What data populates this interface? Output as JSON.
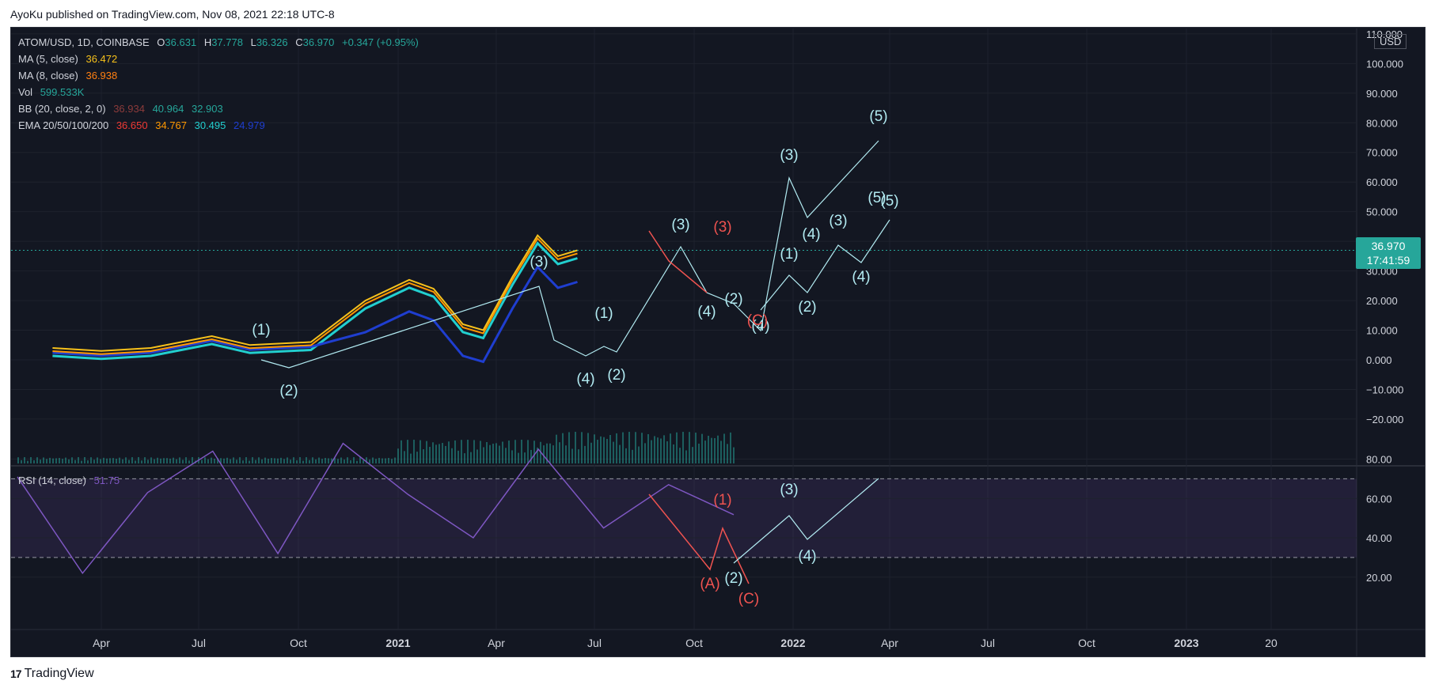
{
  "header": {
    "published": "AyoKu published on TradingView.com, Nov 08, 2021 22:18 UTC-8"
  },
  "footer": {
    "brand": "TradingView",
    "logo": "tradingview-logo"
  },
  "legend": {
    "symbol": "ATOM/USD, 1D, COINBASE",
    "ohlc": [
      {
        "k": "O",
        "v": "36.631"
      },
      {
        "k": "H",
        "v": "37.778"
      },
      {
        "k": "L",
        "v": "36.326"
      },
      {
        "k": "C",
        "v": "36.970"
      }
    ],
    "change": "+0.347 (+0.95%)",
    "ma5_label": "MA (5, close)",
    "ma5_value": "36.472",
    "ma8_label": "MA (8, close)",
    "ma8_value": "36.938",
    "vol_label": "Vol",
    "vol_value": "599.533K",
    "bb_label": "BB (20, close, 2, 0)",
    "bb_values": [
      "36.934",
      "40.964",
      "32.903"
    ],
    "ema_label": "EMA 20/50/100/200",
    "ema_values": [
      "36.650",
      "34.767",
      "30.495",
      "24.979"
    ],
    "rsi_label": "RSI (14, close)",
    "rsi_value": "51.75"
  },
  "price_axis": {
    "currency": "USD",
    "ticks": [
      "110.000",
      "100.000",
      "90.000",
      "80.000",
      "70.000",
      "60.000",
      "50.000",
      "40.000",
      "30.000",
      "20.000",
      "10.000",
      "0.000",
      "−10.000",
      "−20.000"
    ],
    "last_price": "36.970",
    "countdown": "17:41:59"
  },
  "rsi_axis": {
    "ticks": [
      "80.00",
      "60.00",
      "40.00",
      "20.00"
    ]
  },
  "time_axis": {
    "ticks": [
      "Apr",
      "Jul",
      "Oct",
      "2021",
      "Apr",
      "Jul",
      "Oct",
      "2022",
      "Apr",
      "Jul",
      "Oct",
      "2023",
      "20"
    ],
    "bold": [
      "2021",
      "2022",
      "2023"
    ]
  },
  "colors": {
    "background": "#131722",
    "grid": "#1e222d",
    "text": "#d1d4dc",
    "price": "#26a69a",
    "ma5": "#f7c11b",
    "ma8": "#ff7f11",
    "bb": "#26a69a",
    "ema20": "#ef3934",
    "ema50": "#ff9800",
    "ema100": "#22cfcf",
    "ema200": "#1f3ed0",
    "rsi": "#7e57c2",
    "wave": "#b2ebf2",
    "corrective": "#ef5350"
  },
  "chart_data": {
    "type": "line",
    "title": "ATOM/USD, 1D, COINBASE",
    "ylabel": "USD",
    "ylim": [
      -25,
      115
    ],
    "series": [
      {
        "name": "ATOM/USD",
        "x": [
          "2020-02-01",
          "2020-04-01",
          "2020-06-01",
          "2020-08-15",
          "2020-10-01",
          "2020-12-15",
          "2021-02-20",
          "2021-04-15",
          "2021-05-15",
          "2021-06-20",
          "2021-07-15",
          "2021-08-20",
          "2021-09-20",
          "2021-10-15",
          "2021-11-08"
        ],
        "values": [
          4,
          3,
          4,
          8,
          5,
          6,
          20,
          27,
          24,
          12,
          10,
          28,
          42,
          35,
          36.97
        ]
      },
      {
        "name": "RSI (14, close)",
        "values": [
          71,
          22,
          63,
          84,
          32,
          88,
          62,
          40,
          85,
          45,
          67,
          51.75
        ]
      }
    ],
    "rsi_levels": [
      70,
      30
    ],
    "wave_labels": [
      "(1)",
      "(2)",
      "(3)",
      "(4)",
      "(5)",
      "(A)",
      "(C)"
    ]
  },
  "wave_labels": [
    {
      "t": "(1)",
      "x": 330,
      "y": 423,
      "c": "w"
    },
    {
      "t": "(2)",
      "x": 365,
      "y": 500,
      "c": "w"
    },
    {
      "t": "(3)",
      "x": 681,
      "y": 337,
      "c": "w"
    },
    {
      "t": "(1)",
      "x": 763,
      "y": 402,
      "c": "w"
    },
    {
      "t": "(4)",
      "x": 740,
      "y": 485,
      "c": "w"
    },
    {
      "t": "(2)",
      "x": 779,
      "y": 480,
      "c": "w"
    },
    {
      "t": "(3)",
      "x": 860,
      "y": 290,
      "c": "w"
    },
    {
      "t": "(3)",
      "x": 913,
      "y": 293,
      "c": "r"
    },
    {
      "t": "(4)",
      "x": 893,
      "y": 400,
      "c": "w"
    },
    {
      "t": "(2)",
      "x": 927,
      "y": 384,
      "c": "w"
    },
    {
      "t": "(4)",
      "x": 961,
      "y": 418,
      "c": "w"
    },
    {
      "t": "(C)",
      "x": 957,
      "y": 411,
      "c": "r"
    },
    {
      "t": "(3)",
      "x": 997,
      "y": 202,
      "c": "w"
    },
    {
      "t": "(1)",
      "x": 997,
      "y": 327,
      "c": "w"
    },
    {
      "t": "(2)",
      "x": 1020,
      "y": 394,
      "c": "w"
    },
    {
      "t": "(4)",
      "x": 1025,
      "y": 302,
      "c": "w"
    },
    {
      "t": "(3)",
      "x": 1059,
      "y": 285,
      "c": "w"
    },
    {
      "t": "(4)",
      "x": 1088,
      "y": 356,
      "c": "w"
    },
    {
      "t": "(5)",
      "x": 1110,
      "y": 153,
      "c": "w"
    },
    {
      "t": "(5)",
      "x": 1108,
      "y": 256,
      "c": "w"
    },
    {
      "t": "(5)",
      "x": 1124,
      "y": 260,
      "c": "w"
    },
    {
      "t": "(1)",
      "x": 913,
      "y": 638,
      "c": "r"
    },
    {
      "t": "(3)",
      "x": 997,
      "y": 625,
      "c": "w"
    },
    {
      "t": "(4)",
      "x": 1020,
      "y": 709,
      "c": "w"
    },
    {
      "t": "(2)",
      "x": 927,
      "y": 737,
      "c": "w"
    },
    {
      "t": "(A)",
      "x": 897,
      "y": 744,
      "c": "r"
    },
    {
      "t": "(C)",
      "x": 946,
      "y": 763,
      "c": "r"
    }
  ]
}
